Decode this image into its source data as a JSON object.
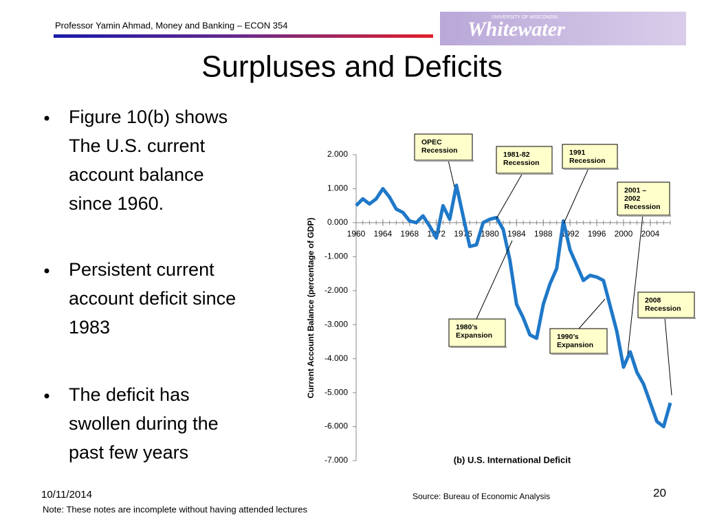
{
  "header": "Professor Yamin Ahmad, Money and Banking – ECON 354",
  "logo": {
    "top": "UNIVERSITY OF WISCONSIN",
    "name": "Whitewater"
  },
  "title": "Surpluses and Deficits",
  "bullets": [
    [
      "Figure 10(b) shows",
      "The U.S. current",
      "account balance",
      "since 1960."
    ],
    [
      "Persistent current",
      "account deficit since",
      "1983"
    ],
    [
      "The deficit has",
      "swollen during the",
      "past few years"
    ]
  ],
  "footer": {
    "date": "10/11/2014",
    "note": "Note: These notes are incomplete without having attended lectures",
    "source": "Source: Bureau of Economic Analysis",
    "page": "20"
  },
  "chart_data": {
    "type": "line",
    "title": "(b) U.S. International Deficit",
    "y_label": "Current Account Balance (percentage of GDP)",
    "x": [
      1960,
      1961,
      1962,
      1963,
      1964,
      1965,
      1966,
      1967,
      1968,
      1969,
      1970,
      1971,
      1972,
      1973,
      1974,
      1975,
      1976,
      1977,
      1978,
      1979,
      1980,
      1981,
      1982,
      1983,
      1984,
      1985,
      1986,
      1987,
      1988,
      1989,
      1990,
      1991,
      1992,
      1993,
      1994,
      1995,
      1996,
      1997,
      1998,
      1999,
      2000,
      2001,
      2002,
      2003,
      2004,
      2005,
      2006,
      2007
    ],
    "series": [
      {
        "name": "Current account balance",
        "color": "#1f78c8",
        "values": [
          0.5,
          0.7,
          0.55,
          0.7,
          1.0,
          0.75,
          0.4,
          0.3,
          0.05,
          0.0,
          0.2,
          -0.1,
          -0.45,
          0.5,
          0.1,
          1.1,
          0.2,
          -0.7,
          -0.65,
          0.0,
          0.1,
          0.15,
          -0.2,
          -1.1,
          -2.4,
          -2.8,
          -3.3,
          -3.4,
          -2.4,
          -1.8,
          -1.35,
          0.05,
          -0.8,
          -1.25,
          -1.7,
          -1.55,
          -1.6,
          -1.7,
          -2.45,
          -3.2,
          -4.25,
          -3.8,
          -4.4,
          -4.75,
          -5.3,
          -5.85,
          -6.0,
          -5.3
        ]
      }
    ],
    "xlim": [
      1960,
      2007
    ],
    "xticks": [
      1960,
      1964,
      1968,
      1972,
      1976,
      1980,
      1984,
      1988,
      1992,
      1996,
      2000,
      2004
    ],
    "ylim": [
      -7,
      2
    ],
    "yticks": [
      {
        "value": 2,
        "label": "2.000"
      },
      {
        "value": 1,
        "label": "1.000"
      },
      {
        "value": 0,
        "label": "0.000"
      },
      {
        "value": -1,
        "label": "-1.000"
      },
      {
        "value": -2,
        "label": "-2.000"
      },
      {
        "value": -3,
        "label": "-3.000"
      },
      {
        "value": -4,
        "label": "-4.000"
      },
      {
        "value": -5,
        "label": "-5.000"
      },
      {
        "value": -6,
        "label": "-6.000"
      },
      {
        "value": -7,
        "label": "-7.000"
      }
    ],
    "annotations": [
      [
        "OPEC",
        "Recession"
      ],
      [
        "1981-82",
        "Recession"
      ],
      [
        "1991",
        "Recession"
      ],
      [
        "2001 –",
        "2002",
        "Recession"
      ],
      [
        "1980’s",
        "Expansion"
      ],
      [
        "1990’s",
        "Expansion"
      ],
      [
        "2008",
        "Recession"
      ]
    ]
  }
}
